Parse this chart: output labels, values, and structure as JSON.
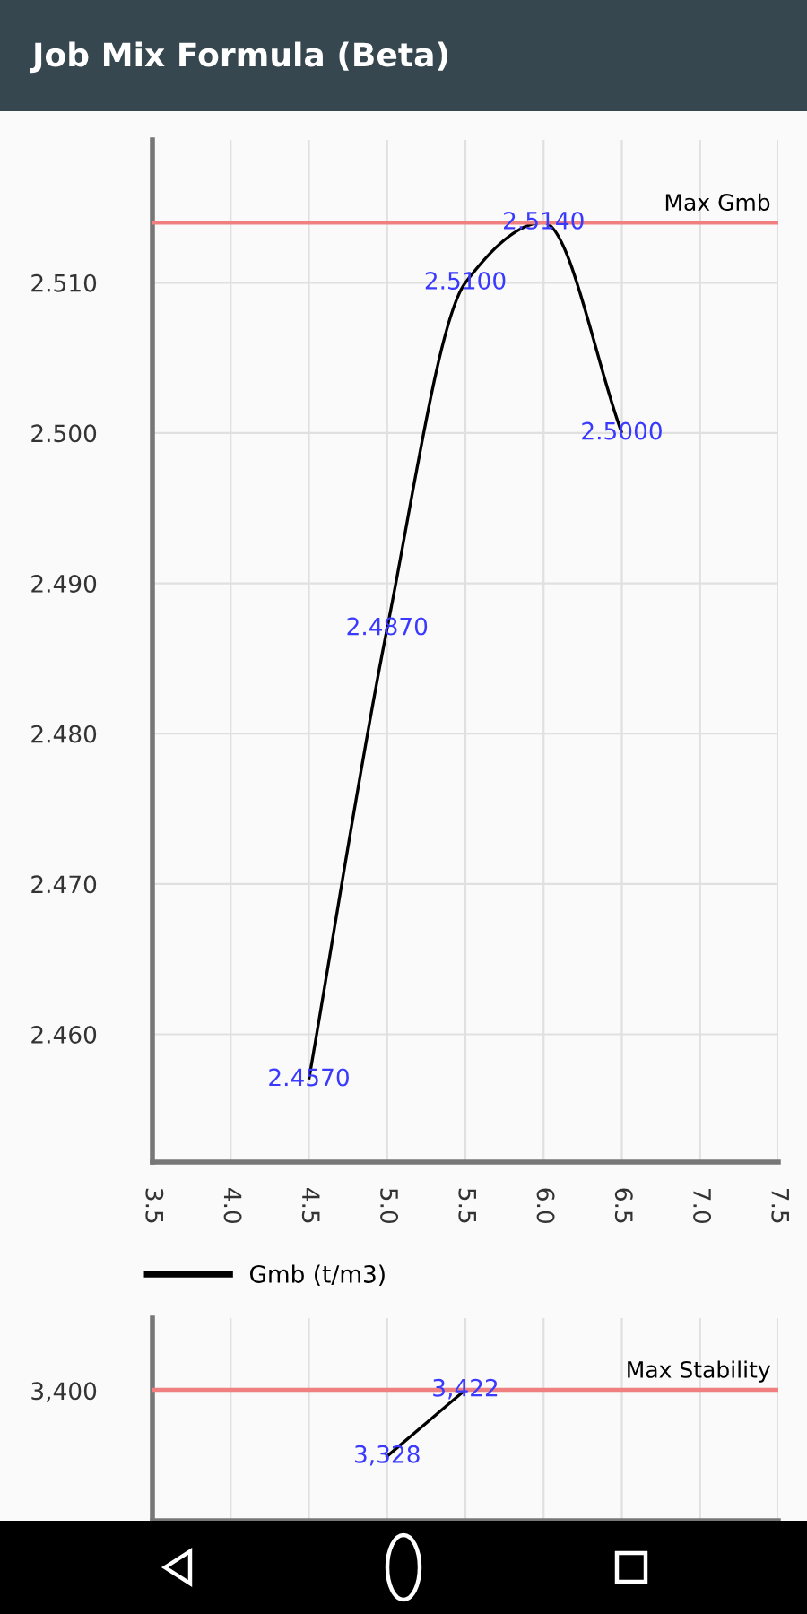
{
  "chart_data": [
    {
      "type": "line",
      "title": "Job Mix Formula (Beta)",
      "x": [
        4.5,
        5.0,
        5.5,
        6.0,
        6.5
      ],
      "series": [
        {
          "name": "Gmb (t/m3)",
          "color": "#000000",
          "values": [
            2.457,
            2.487,
            2.51,
            2.514,
            2.5
          ],
          "value_labels": [
            "2.4570",
            "2.4870",
            "2.5100",
            "2.5140",
            "2.5000"
          ]
        }
      ],
      "xlim": [
        3.5,
        7.5
      ],
      "xticks": [
        3.5,
        {
          "value": 4,
          "label": "4.0"
        },
        4.5,
        {
          "value": 5,
          "label": "5.0"
        },
        5.5,
        {
          "value": 6,
          "label": "6.0"
        },
        6.5,
        {
          "value": 7,
          "label": "7.0"
        },
        7.5
      ],
      "ylim": [
        2.4515,
        2.5195
      ],
      "yticks": [
        {
          "value": 2.46,
          "label": "2.460"
        },
        {
          "value": 2.47,
          "label": "2.470"
        },
        {
          "value": 2.48,
          "label": "2.480"
        },
        {
          "value": 2.49,
          "label": "2.490"
        },
        {
          "value": 2.5,
          "label": "2.500"
        },
        {
          "value": 2.51,
          "label": "2.510"
        }
      ],
      "ref_lines": [
        {
          "axis": "y",
          "value": 2.514,
          "label": "Max Gmb",
          "color": "#f08080"
        }
      ],
      "grid": true,
      "legend": "bottom left"
    },
    {
      "type": "line",
      "x": [
        5.0,
        5.5
      ],
      "series": [
        {
          "color": "#000000",
          "values": [
            3328,
            3422
          ],
          "value_labels": [
            "3,328",
            "3,422"
          ]
        }
      ],
      "xlim": [
        3.5,
        7.5
      ],
      "xticks": [
        3.5,
        4.0,
        4.5,
        5.0,
        5.5,
        6.0,
        6.5,
        7.0,
        7.5
      ],
      "annotations": [
        "3,400"
      ],
      "ref_lines": [
        {
          "axis": "y",
          "value": 3422,
          "label": "Max Stability",
          "color": "#f08080"
        }
      ],
      "grid": true,
      "tick_labels": false
    }
  ]
}
